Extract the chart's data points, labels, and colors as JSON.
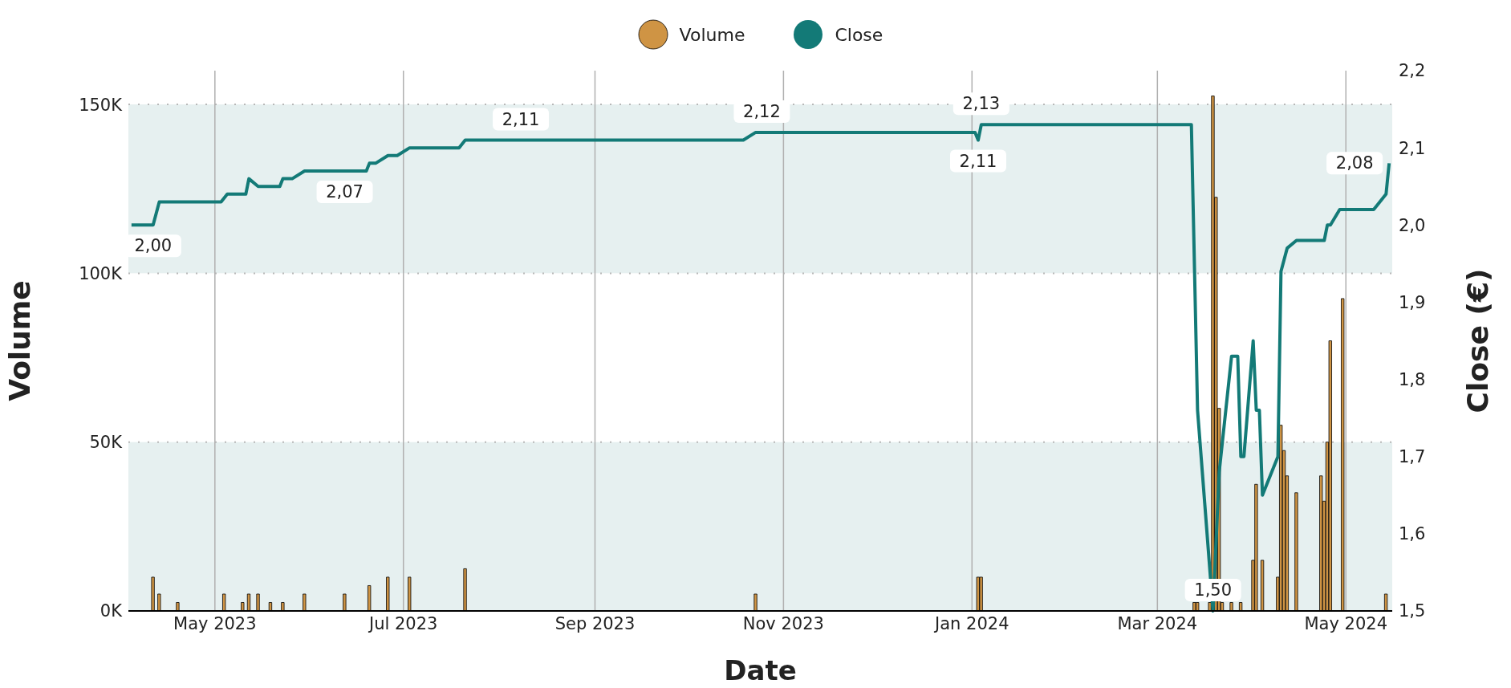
{
  "chart_data": {
    "type": "bar",
    "xlabel": "Date",
    "ylabel": "Volume",
    "y2label": "Close (€)",
    "legend": "top",
    "grid": true,
    "xlim": [
      "2023-04-03",
      "2024-05-16"
    ],
    "xticks": [
      {
        "value": "2023-05-01",
        "label": "May 2023"
      },
      {
        "value": "2023-07-01",
        "label": "Jul 2023"
      },
      {
        "value": "2023-09-01",
        "label": "Sep 2023"
      },
      {
        "value": "2023-11-01",
        "label": "Nov 2023"
      },
      {
        "value": "2024-01-01",
        "label": "Jan 2024"
      },
      {
        "value": "2024-03-01",
        "label": "Mar 2024"
      },
      {
        "value": "2024-05-01",
        "label": "May 2024"
      }
    ],
    "ylim": [
      0,
      160000
    ],
    "yticks": [
      {
        "value": 0,
        "label": "0K"
      },
      {
        "value": 50000,
        "label": "50K"
      },
      {
        "value": 100000,
        "label": "100K"
      },
      {
        "value": 150000,
        "label": "150K"
      }
    ],
    "y2lim": [
      1.5,
      2.2
    ],
    "y2ticks": [
      {
        "value": 1.5,
        "label": "1,5"
      },
      {
        "value": 1.6,
        "label": "1,6"
      },
      {
        "value": 1.7,
        "label": "1,7"
      },
      {
        "value": 1.8,
        "label": "1,8"
      },
      {
        "value": 1.9,
        "label": "1,9"
      },
      {
        "value": 2.0,
        "label": "2,0"
      },
      {
        "value": 2.1,
        "label": "2,1"
      },
      {
        "value": 2.2,
        "label": "2,2"
      }
    ],
    "bands": [
      {
        "axis": "y",
        "from": 0,
        "to": 50000,
        "color": "#e6f0f0"
      },
      {
        "axis": "y",
        "from": 100000,
        "to": 150000,
        "color": "#e6f0f0"
      }
    ],
    "series": [
      {
        "name": "Volume",
        "type": "bar",
        "color": "#cf9444",
        "x": [
          "2023-04-11",
          "2023-04-13",
          "2023-04-19",
          "2023-05-04",
          "2023-05-10",
          "2023-05-12",
          "2023-05-15",
          "2023-05-19",
          "2023-05-23",
          "2023-05-30",
          "2023-06-12",
          "2023-06-20",
          "2023-06-26",
          "2023-07-03",
          "2023-07-21",
          "2023-10-23",
          "2024-01-03",
          "2024-01-04",
          "2024-03-13",
          "2024-03-14",
          "2024-03-18",
          "2024-03-19",
          "2024-03-20",
          "2024-03-21",
          "2024-03-22",
          "2024-03-25",
          "2024-03-28",
          "2024-04-01",
          "2024-04-02",
          "2024-04-04",
          "2024-04-09",
          "2024-04-10",
          "2024-04-11",
          "2024-04-12",
          "2024-04-15",
          "2024-04-23",
          "2024-04-24",
          "2024-04-25",
          "2024-04-26",
          "2024-04-30",
          "2024-05-14"
        ],
        "values": [
          10000,
          5000,
          2500,
          5000,
          2500,
          5000,
          5000,
          2500,
          2500,
          5000,
          5000,
          7500,
          10000,
          10000,
          12500,
          5000,
          10000,
          10000,
          2500,
          2500,
          2500,
          152500,
          122500,
          60000,
          2500,
          2500,
          2500,
          15000,
          37500,
          15000,
          10000,
          55000,
          47500,
          40000,
          35000,
          40000,
          32500,
          50000,
          80000,
          92500,
          5000
        ]
      },
      {
        "name": "Close",
        "type": "line",
        "color": "#137a77",
        "axis": "y2",
        "x": [
          "2023-04-04",
          "2023-04-11",
          "2023-04-13",
          "2023-05-03",
          "2023-05-05",
          "2023-05-11",
          "2023-05-12",
          "2023-05-15",
          "2023-05-22",
          "2023-05-23",
          "2023-05-26",
          "2023-05-30",
          "2023-06-12",
          "2023-06-19",
          "2023-06-20",
          "2023-06-22",
          "2023-06-26",
          "2023-06-29",
          "2023-07-03",
          "2023-07-19",
          "2023-07-21",
          "2023-08-08",
          "2023-10-19",
          "2023-10-23",
          "2023-10-25",
          "2024-01-02",
          "2024-01-03",
          "2024-01-04",
          "2024-03-12",
          "2024-03-14",
          "2024-03-19",
          "2024-03-21",
          "2024-03-25",
          "2024-03-27",
          "2024-03-28",
          "2024-03-29",
          "2024-04-01",
          "2024-04-02",
          "2024-04-03",
          "2024-04-04",
          "2024-04-09",
          "2024-04-10",
          "2024-04-12",
          "2024-04-15",
          "2024-04-24",
          "2024-04-25",
          "2024-04-26",
          "2024-04-29",
          "2024-05-10",
          "2024-05-14",
          "2024-05-15"
        ],
        "values": [
          2.0,
          2.0,
          2.03,
          2.03,
          2.04,
          2.04,
          2.06,
          2.05,
          2.05,
          2.06,
          2.06,
          2.07,
          2.07,
          2.07,
          2.08,
          2.08,
          2.09,
          2.09,
          2.1,
          2.1,
          2.11,
          2.11,
          2.11,
          2.12,
          2.12,
          2.12,
          2.11,
          2.13,
          2.13,
          1.76,
          1.5,
          1.68,
          1.83,
          1.83,
          1.7,
          1.7,
          1.85,
          1.76,
          1.76,
          1.65,
          1.7,
          1.94,
          1.97,
          1.98,
          1.98,
          2.0,
          2.0,
          2.02,
          2.02,
          2.04,
          2.08
        ],
        "value_labels": [
          null,
          "2,00",
          null,
          null,
          null,
          null,
          null,
          null,
          null,
          null,
          null,
          null,
          "2,07",
          null,
          null,
          null,
          null,
          null,
          null,
          null,
          null,
          "2,11",
          null,
          null,
          "2,12",
          null,
          "2,11",
          "2,13",
          null,
          null,
          "1,50",
          null,
          null,
          null,
          null,
          null,
          null,
          null,
          null,
          null,
          null,
          null,
          null,
          null,
          null,
          null,
          null,
          null,
          null,
          null,
          "2,08"
        ]
      }
    ]
  }
}
